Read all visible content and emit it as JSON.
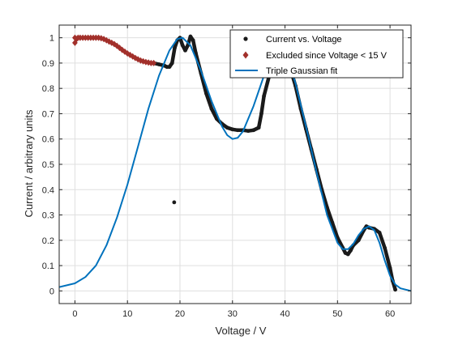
{
  "chart_data": {
    "type": "scatter",
    "title": "",
    "xlabel": "Voltage / V",
    "ylabel": "Current / arbitrary units",
    "xlim": [
      -3,
      64
    ],
    "ylim": [
      -0.05,
      1.05
    ],
    "xticks": [
      0,
      10,
      20,
      30,
      40,
      50,
      60
    ],
    "yticks": [
      0,
      0.1,
      0.2,
      0.3,
      0.4,
      0.5,
      0.6,
      0.7,
      0.8,
      0.9,
      1
    ],
    "xtick_labels": [
      "0",
      "10",
      "20",
      "30",
      "40",
      "50",
      "60"
    ],
    "ytick_labels": [
      "0",
      "0.1",
      "0.2",
      "0.3",
      "0.4",
      "0.5",
      "0.6",
      "0.7",
      "0.8",
      "0.9",
      "1"
    ],
    "grid": true,
    "legend_position": "top-right",
    "series": [
      {
        "name": "Current vs. Voltage",
        "kind": "markers",
        "marker": "dot",
        "color": "#1a1a1a",
        "points": [
          [
            15.0,
            0.9
          ],
          [
            16.0,
            0.895
          ],
          [
            17.0,
            0.89
          ],
          [
            17.5,
            0.885
          ],
          [
            18.0,
            0.885
          ],
          [
            18.5,
            0.9
          ],
          [
            18.9,
            0.35
          ],
          [
            19.0,
            0.96
          ],
          [
            19.5,
            0.99
          ],
          [
            20.0,
            1.0
          ],
          [
            20.5,
            0.97
          ],
          [
            21.0,
            0.95
          ],
          [
            21.5,
            0.97
          ],
          [
            22.0,
            1.005
          ],
          [
            22.5,
            0.99
          ],
          [
            23.0,
            0.94
          ],
          [
            24.0,
            0.86
          ],
          [
            25.0,
            0.78
          ],
          [
            26.0,
            0.72
          ],
          [
            27.0,
            0.68
          ],
          [
            28.0,
            0.66
          ],
          [
            29.0,
            0.645
          ],
          [
            30.0,
            0.638
          ],
          [
            31.0,
            0.635
          ],
          [
            32.0,
            0.635
          ],
          [
            33.0,
            0.632
          ],
          [
            34.0,
            0.635
          ],
          [
            35.0,
            0.645
          ],
          [
            35.5,
            0.7
          ],
          [
            36.0,
            0.77
          ],
          [
            37.0,
            0.85
          ],
          [
            38.0,
            0.9
          ],
          [
            39.0,
            0.92
          ],
          [
            40.0,
            0.92
          ],
          [
            41.0,
            0.88
          ],
          [
            42.0,
            0.81
          ],
          [
            43.0,
            0.72
          ],
          [
            44.0,
            0.64
          ],
          [
            45.0,
            0.56
          ],
          [
            46.0,
            0.48
          ],
          [
            47.0,
            0.4
          ],
          [
            48.0,
            0.33
          ],
          [
            49.0,
            0.27
          ],
          [
            50.0,
            0.21
          ],
          [
            51.0,
            0.17
          ],
          [
            51.5,
            0.15
          ],
          [
            52.0,
            0.145
          ],
          [
            52.5,
            0.16
          ],
          [
            53.0,
            0.18
          ],
          [
            54.0,
            0.2
          ],
          [
            55.0,
            0.24
          ],
          [
            55.5,
            0.255
          ],
          [
            56.0,
            0.25
          ],
          [
            57.0,
            0.245
          ],
          [
            58.0,
            0.23
          ],
          [
            59.0,
            0.17
          ],
          [
            60.0,
            0.09
          ],
          [
            60.5,
            0.04
          ],
          [
            61.0,
            0.005
          ]
        ]
      },
      {
        "name": "Excluded since Voltage < 15 V",
        "kind": "markers",
        "marker": "diamond",
        "color": "#a2302b",
        "points": [
          [
            0.0,
            0.98
          ],
          [
            0.0,
            1.0
          ],
          [
            0.3,
            0.995
          ],
          [
            0.6,
            1.0
          ],
          [
            1.0,
            1.0
          ],
          [
            1.5,
            1.0
          ],
          [
            2.0,
            1.0
          ],
          [
            2.5,
            1.0
          ],
          [
            3.0,
            1.0
          ],
          [
            3.5,
            1.0
          ],
          [
            4.0,
            1.0
          ],
          [
            4.5,
            1.0
          ],
          [
            5.0,
            0.998
          ],
          [
            5.5,
            0.995
          ],
          [
            6.0,
            0.99
          ],
          [
            6.5,
            0.985
          ],
          [
            7.0,
            0.98
          ],
          [
            7.5,
            0.975
          ],
          [
            8.0,
            0.968
          ],
          [
            8.5,
            0.96
          ],
          [
            9.0,
            0.952
          ],
          [
            9.5,
            0.945
          ],
          [
            10.0,
            0.938
          ],
          [
            10.5,
            0.932
          ],
          [
            11.0,
            0.926
          ],
          [
            11.5,
            0.92
          ],
          [
            12.0,
            0.915
          ],
          [
            12.5,
            0.91
          ],
          [
            13.0,
            0.907
          ],
          [
            13.5,
            0.904
          ],
          [
            14.0,
            0.902
          ],
          [
            14.5,
            0.9
          ],
          [
            15.0,
            0.9
          ]
        ]
      },
      {
        "name": "Triple Gaussian fit",
        "kind": "line",
        "color": "#0072bd",
        "points": [
          [
            -3.0,
            0.015
          ],
          [
            0.0,
            0.03
          ],
          [
            2.0,
            0.055
          ],
          [
            4.0,
            0.1
          ],
          [
            6.0,
            0.18
          ],
          [
            8.0,
            0.29
          ],
          [
            10.0,
            0.42
          ],
          [
            12.0,
            0.57
          ],
          [
            14.0,
            0.72
          ],
          [
            16.0,
            0.85
          ],
          [
            18.0,
            0.95
          ],
          [
            19.5,
            0.995
          ],
          [
            20.5,
            1.0
          ],
          [
            22.0,
            0.97
          ],
          [
            24.0,
            0.87
          ],
          [
            26.0,
            0.75
          ],
          [
            28.0,
            0.65
          ],
          [
            29.0,
            0.615
          ],
          [
            30.0,
            0.6
          ],
          [
            31.0,
            0.605
          ],
          [
            32.0,
            0.63
          ],
          [
            34.0,
            0.73
          ],
          [
            36.0,
            0.85
          ],
          [
            38.0,
            0.92
          ],
          [
            39.0,
            0.935
          ],
          [
            40.0,
            0.925
          ],
          [
            41.0,
            0.89
          ],
          [
            42.0,
            0.82
          ],
          [
            44.0,
            0.65
          ],
          [
            46.0,
            0.47
          ],
          [
            48.0,
            0.3
          ],
          [
            50.0,
            0.19
          ],
          [
            51.0,
            0.165
          ],
          [
            52.0,
            0.165
          ],
          [
            53.0,
            0.185
          ],
          [
            54.0,
            0.22
          ],
          [
            55.0,
            0.245
          ],
          [
            56.0,
            0.255
          ],
          [
            57.0,
            0.24
          ],
          [
            58.0,
            0.19
          ],
          [
            59.0,
            0.12
          ],
          [
            60.0,
            0.06
          ],
          [
            61.0,
            0.025
          ],
          [
            62.0,
            0.01
          ],
          [
            64.0,
            0.0
          ]
        ]
      }
    ]
  }
}
